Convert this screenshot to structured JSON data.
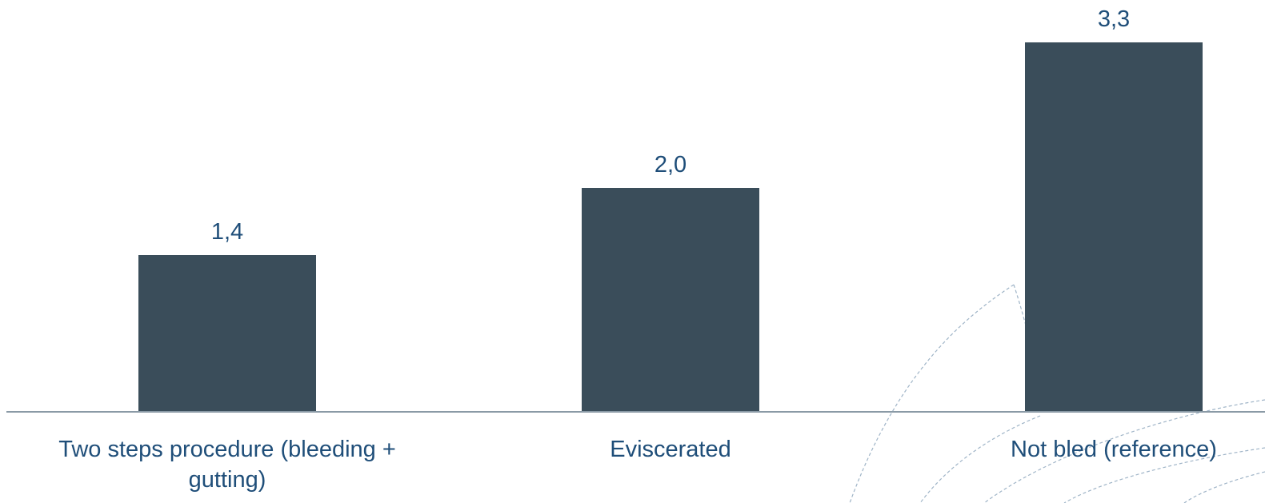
{
  "chart_data": {
    "type": "bar",
    "categories": [
      "Two steps procedure (bleeding + gutting)",
      "Eviscerated",
      "Not bled (reference)"
    ],
    "category_lines": [
      [
        "Two steps procedure (bleeding +",
        "gutting)"
      ],
      [
        "Eviscerated"
      ],
      [
        "Not bled (reference)"
      ]
    ],
    "values": [
      1.4,
      2.0,
      3.3
    ],
    "value_labels": [
      "1,4",
      "2,0",
      "3,3"
    ],
    "title": "",
    "xlabel": "",
    "ylabel": "",
    "ylim": [
      0,
      3.5
    ],
    "grid": false,
    "legend": "none",
    "bar_color": "#3a4d5a",
    "label_color": "#1f4e79",
    "axis_color": "#8a9aa6"
  }
}
